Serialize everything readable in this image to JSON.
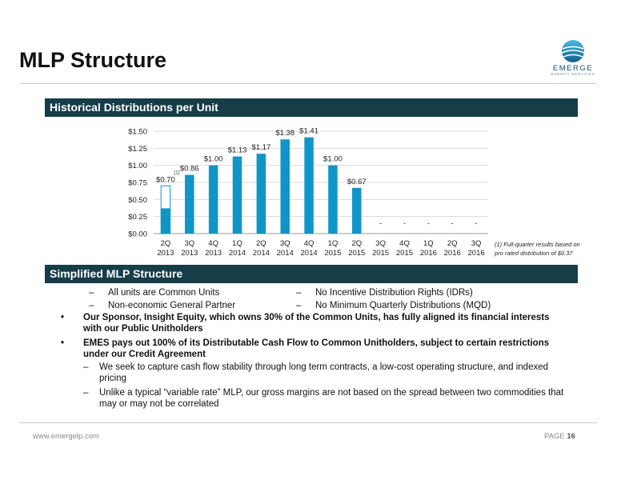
{
  "page": {
    "title": "MLP Structure",
    "footer_url": "www.emergelp.com",
    "footer_page_label": "PAGE",
    "footer_page_number": "16"
  },
  "logo": {
    "name": "EMERGE",
    "tagline": "ENERGY SERVICES"
  },
  "section1": {
    "heading": "Historical Distributions per Unit"
  },
  "section2": {
    "heading": "Simplified MLP Structure"
  },
  "footnote": "(1) Full-quarter results based on pro rated distribution of $0.37",
  "structure": {
    "left": [
      "All units are Common Units",
      "Non-economic General Partner"
    ],
    "right": [
      "No Incentive Distribution Rights (IDRs)",
      "No Minimum Quarterly Distributions (MQD)"
    ]
  },
  "bullets": [
    {
      "text": "Our Sponsor, Insight Equity, which owns 30% of the Common Units, has fully aligned its financial interests with our Public Unitholders",
      "bold": true
    },
    {
      "text": "EMES pays out 100% of its Distributable Cash Flow to Common Unitholders, subject to certain restrictions under our Credit Agreement",
      "bold": true,
      "sub": [
        "We seek to capture cash flow stability through long term contracts, a low-cost operating structure, and indexed pricing",
        "Unlike a typical “variable rate” MLP, our gross margins are not based on the spread between two commodities that may or may not be correlated"
      ]
    }
  ],
  "colors": {
    "bar": "#0f96c6",
    "band": "#163d48",
    "grid": "#d9d9d9"
  },
  "chart_data": {
    "type": "bar",
    "categories": [
      "2Q 2013",
      "3Q 2013",
      "4Q 2013",
      "1Q 2014",
      "2Q 2014",
      "3Q 2014",
      "4Q 2014",
      "1Q 2015",
      "2Q 2015",
      "3Q 2015",
      "4Q 2015",
      "1Q 2016",
      "2Q 2016",
      "3Q 2016"
    ],
    "values": [
      0.7,
      0.86,
      1.0,
      1.13,
      1.17,
      1.38,
      1.41,
      1.0,
      0.67,
      0,
      0,
      0,
      0,
      0
    ],
    "actual_first": 0.37,
    "data_labels": [
      "$0.70",
      "$0.86",
      "$1.00",
      "$1.13",
      "$1.17",
      "$1.38",
      "$1.41",
      "$1.00",
      "$0.67",
      "-",
      "-",
      "-",
      "-",
      "-"
    ],
    "first_label_note": "(1)",
    "yticks": [
      "$0.00",
      "$0.25",
      "$0.50",
      "$0.75",
      "$1.00",
      "$1.25",
      "$1.50"
    ],
    "ylim": [
      0,
      1.5
    ],
    "grid": true
  }
}
